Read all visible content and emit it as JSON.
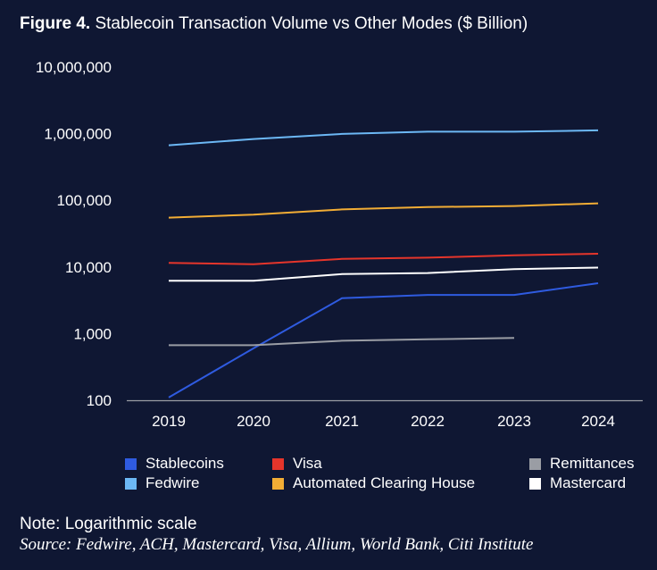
{
  "title": {
    "prefix": "Figure 4.",
    "text": "Stablecoin Transaction Volume vs Other Modes ($ Billion)"
  },
  "note": "Note: Logarithmic scale",
  "source": "Source: Fedwire, ACH, Mastercard, Visa, Allium, World Bank, Citi Institute",
  "chart_data": {
    "type": "line",
    "yscale": "log",
    "ylim": [
      100,
      10000000
    ],
    "y_ticks": [
      100,
      1000,
      10000,
      100000,
      1000000,
      10000000
    ],
    "y_tick_labels": [
      "100",
      "1,000",
      "10,000",
      "100,000",
      "1,000,000",
      "10,000,000"
    ],
    "x": [
      "2019",
      "2020",
      "2021",
      "2022",
      "2023",
      "2024"
    ],
    "grid": false,
    "legend_position": "bottom",
    "series": [
      {
        "name": "Fedwire",
        "color": "#6cb8f5",
        "values": [
          670000,
          830000,
          990000,
          1070000,
          1070000,
          1120000
        ]
      },
      {
        "name": "Automated Clearing House",
        "color": "#f2ad35",
        "values": [
          55000,
          61000,
          73000,
          79000,
          82000,
          90000
        ]
      },
      {
        "name": "Visa",
        "color": "#e5352b",
        "values": [
          11500,
          11000,
          13200,
          13800,
          15000,
          15800
        ]
      },
      {
        "name": "Mastercard",
        "color": "#ffffff",
        "values": [
          6200,
          6200,
          7800,
          8100,
          9300,
          9800
        ]
      },
      {
        "name": "Stablecoins",
        "color": "#2f5be0",
        "values": [
          110,
          600,
          3400,
          3800,
          3800,
          5700
        ]
      },
      {
        "name": "Remittances",
        "color": "#9a9da4",
        "values": [
          670,
          670,
          780,
          820,
          860,
          null
        ]
      }
    ]
  },
  "legend": [
    {
      "name": "Stablecoins",
      "color": "#2f5be0"
    },
    {
      "name": "Visa",
      "color": "#e5352b"
    },
    {
      "name": "Remittances",
      "color": "#9a9da4"
    },
    {
      "name": "Fedwire",
      "color": "#6cb8f5"
    },
    {
      "name": "Automated Clearing House",
      "color": "#f2ad35"
    },
    {
      "name": "Mastercard",
      "color": "#ffffff"
    }
  ]
}
